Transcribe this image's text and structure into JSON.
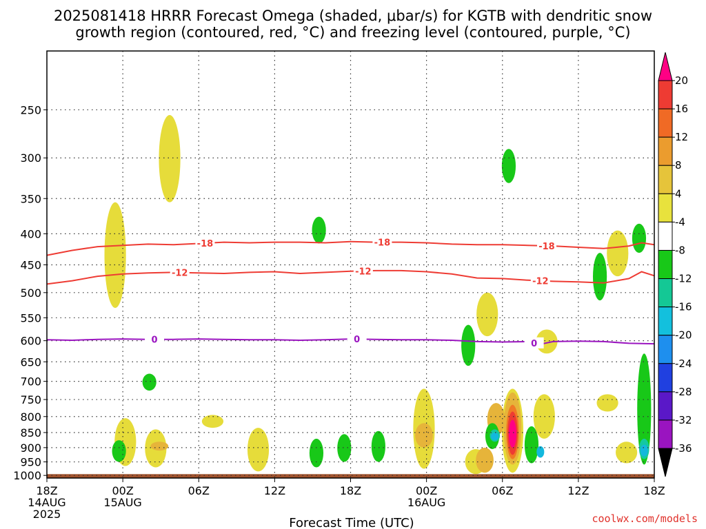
{
  "title": {
    "line1": "2025081418 HRRR Forecast Omega (shaded, μbar/s) for KGTB with dendritic snow",
    "line2": "growth region (contoured, red, °C) and freezing level (contoured, purple, °C)"
  },
  "credit": "coolwx.com/models",
  "chart_data": {
    "type": "time-height",
    "title": "2025081418 HRRR Forecast Omega (shaded, μbar/s) for KGTB with dendritic snow growth region (contoured, red, °C) and freezing level (contoured, purple, °C)",
    "xlabel": "Forecast Time (UTC)",
    "x_range_hours": [
      0,
      48
    ],
    "y_axis": {
      "ticks": [
        250,
        300,
        350,
        400,
        450,
        500,
        550,
        600,
        650,
        700,
        750,
        800,
        850,
        900,
        950,
        1000
      ],
      "range_hpa": [
        200,
        1010
      ],
      "scale": "log",
      "grid": true
    },
    "x_ticks": [
      {
        "hour": 0,
        "lines": [
          "18Z",
          "14AUG",
          "2025"
        ]
      },
      {
        "hour": 6,
        "lines": [
          "00Z",
          "15AUG"
        ]
      },
      {
        "hour": 12,
        "lines": [
          "06Z"
        ]
      },
      {
        "hour": 18,
        "lines": [
          "12Z"
        ]
      },
      {
        "hour": 24,
        "lines": [
          "18Z"
        ]
      },
      {
        "hour": 30,
        "lines": [
          "00Z",
          "16AUG"
        ]
      },
      {
        "hour": 36,
        "lines": [
          "06Z"
        ]
      },
      {
        "hour": 42,
        "lines": [
          "12Z"
        ]
      },
      {
        "hour": 48,
        "lines": [
          "18Z"
        ]
      }
    ],
    "colorbar": {
      "labels": [
        "20",
        "16",
        "12",
        "8",
        "4",
        "-4",
        "-8",
        "-12",
        "-16",
        "-20",
        "-24",
        "-28",
        "-32",
        "-36"
      ],
      "colors": [
        "#ff0084",
        "#ee3b33",
        "#f06a25",
        "#eb9c2e",
        "#e6c43a",
        "#e8e23d",
        "#ffffff",
        "#18c818",
        "#14c895",
        "#13c0dd",
        "#1e8fee",
        "#2040e0",
        "#5a18c8",
        "#9a14c0",
        "#a0a0a0",
        "#000000"
      ]
    },
    "contours": [
      {
        "name": "-18",
        "color": "#ee3b33",
        "points": [
          [
            0,
            434
          ],
          [
            2,
            426
          ],
          [
            4,
            420
          ],
          [
            6,
            418
          ],
          [
            8,
            416
          ],
          [
            10,
            417
          ],
          [
            12,
            415
          ],
          [
            14,
            413
          ],
          [
            16,
            414
          ],
          [
            18,
            413
          ],
          [
            20,
            413
          ],
          [
            22,
            414
          ],
          [
            24,
            412
          ],
          [
            26,
            413
          ],
          [
            28,
            413
          ],
          [
            30,
            414
          ],
          [
            32,
            416
          ],
          [
            34,
            417
          ],
          [
            36,
            417
          ],
          [
            38,
            418
          ],
          [
            40,
            419
          ],
          [
            42,
            421
          ],
          [
            44,
            423
          ],
          [
            46,
            419
          ],
          [
            47,
            414
          ],
          [
            48,
            417
          ]
        ],
        "label_hours": [
          12.5,
          26.5,
          39.5
        ]
      },
      {
        "name": "-12",
        "color": "#ee3b33",
        "points": [
          [
            0,
            484
          ],
          [
            2,
            478
          ],
          [
            4,
            470
          ],
          [
            6,
            466
          ],
          [
            8,
            464
          ],
          [
            10,
            463
          ],
          [
            12,
            464
          ],
          [
            14,
            465
          ],
          [
            16,
            463
          ],
          [
            18,
            462
          ],
          [
            20,
            465
          ],
          [
            22,
            463
          ],
          [
            24,
            461
          ],
          [
            26,
            460
          ],
          [
            28,
            460
          ],
          [
            30,
            462
          ],
          [
            32,
            466
          ],
          [
            34,
            473
          ],
          [
            36,
            474
          ],
          [
            38,
            477
          ],
          [
            40,
            479
          ],
          [
            42,
            480
          ],
          [
            44,
            482
          ],
          [
            46,
            474
          ],
          [
            47,
            462
          ],
          [
            48,
            469
          ]
        ],
        "label_hours": [
          10.5,
          25,
          39
        ]
      },
      {
        "name": "0",
        "color": "#9a14c0",
        "points": [
          [
            0,
            598
          ],
          [
            2,
            599
          ],
          [
            4,
            597
          ],
          [
            6,
            596
          ],
          [
            8,
            597
          ],
          [
            10,
            597
          ],
          [
            12,
            596
          ],
          [
            14,
            597
          ],
          [
            16,
            598
          ],
          [
            18,
            598
          ],
          [
            20,
            599
          ],
          [
            22,
            598
          ],
          [
            24,
            596
          ],
          [
            26,
            597
          ],
          [
            28,
            598
          ],
          [
            30,
            598
          ],
          [
            32,
            599
          ],
          [
            34,
            602
          ],
          [
            36,
            603
          ],
          [
            38,
            602
          ],
          [
            39,
            608
          ],
          [
            40,
            602
          ],
          [
            42,
            601
          ],
          [
            44,
            602
          ],
          [
            46,
            606
          ],
          [
            48,
            607
          ]
        ],
        "label_hours": [
          8.5,
          24.5,
          38.5
        ]
      }
    ],
    "omega_areas": [
      {
        "band": "4to8",
        "hour": 5.4,
        "p_top": 355,
        "p_bot": 530
      },
      {
        "band": "4to8",
        "hour": 9.7,
        "p_top": 255,
        "p_bot": 355
      },
      {
        "band": "4to8",
        "hour": 6.2,
        "p_top": 805,
        "p_bot": 965
      },
      {
        "band": "4to8",
        "hour": 8.6,
        "p_top": 840,
        "p_bot": 970
      },
      {
        "band": "4to8",
        "hour": 13.1,
        "p_top": 795,
        "p_bot": 835
      },
      {
        "band": "4to8",
        "hour": 16.7,
        "p_top": 835,
        "p_bot": 985
      },
      {
        "band": "4to8",
        "hour": 29.8,
        "p_top": 720,
        "p_bot": 975
      },
      {
        "band": "4to8",
        "hour": 34.8,
        "p_top": 500,
        "p_bot": 590
      },
      {
        "band": "4to8",
        "hour": 33.9,
        "p_top": 905,
        "p_bot": 995
      },
      {
        "band": "4to8",
        "hour": 36.8,
        "p_top": 720,
        "p_bot": 990
      },
      {
        "band": "4to8",
        "hour": 39.3,
        "p_top": 735,
        "p_bot": 870
      },
      {
        "band": "4to8",
        "hour": 39.5,
        "p_top": 575,
        "p_bot": 630
      },
      {
        "band": "4to8",
        "hour": 45.1,
        "p_top": 395,
        "p_bot": 470
      },
      {
        "band": "4to8",
        "hour": 44.3,
        "p_top": 735,
        "p_bot": 785
      },
      {
        "band": "4to8",
        "hour": 45.8,
        "p_top": 880,
        "p_bot": 955
      },
      {
        "band": "8to12",
        "hour": 8.9,
        "p_top": 880,
        "p_bot": 910
      },
      {
        "band": "8to12",
        "hour": 29.8,
        "p_top": 820,
        "p_bot": 900
      },
      {
        "band": "8to12",
        "hour": 34.6,
        "p_top": 900,
        "p_bot": 990
      },
      {
        "band": "8to12",
        "hour": 35.5,
        "p_top": 760,
        "p_bot": 860
      },
      {
        "band": "8to12",
        "hour": 36.8,
        "p_top": 730,
        "p_bot": 960
      },
      {
        "band": "12to16",
        "hour": 36.8,
        "p_top": 765,
        "p_bot": 940
      },
      {
        "band": "16to20",
        "hour": 36.8,
        "p_top": 785,
        "p_bot": 925
      },
      {
        "band": "gt20",
        "hour": 36.8,
        "p_top": 810,
        "p_bot": 900
      },
      {
        "band": "m4to-8",
        "hour": 5.7,
        "p_top": 875,
        "p_bot": 950
      },
      {
        "band": "m4to-8",
        "hour": 8.1,
        "p_top": 680,
        "p_bot": 725
      },
      {
        "band": "m4to-8",
        "hour": 21.5,
        "p_top": 375,
        "p_bot": 415
      },
      {
        "band": "m4to-8",
        "hour": 21.3,
        "p_top": 870,
        "p_bot": 970
      },
      {
        "band": "m4to-8",
        "hour": 23.5,
        "p_top": 855,
        "p_bot": 950
      },
      {
        "band": "m4to-8",
        "hour": 26.2,
        "p_top": 845,
        "p_bot": 950
      },
      {
        "band": "m4to-8",
        "hour": 33.3,
        "p_top": 565,
        "p_bot": 660
      },
      {
        "band": "m4to-8",
        "hour": 36.5,
        "p_top": 290,
        "p_bot": 330
      },
      {
        "band": "m4to-8",
        "hour": 35.2,
        "p_top": 820,
        "p_bot": 905
      },
      {
        "band": "m4to-8",
        "hour": 38.3,
        "p_top": 830,
        "p_bot": 955
      },
      {
        "band": "m4to-8",
        "hour": 43.7,
        "p_top": 430,
        "p_bot": 515
      },
      {
        "band": "m4to-8",
        "hour": 47.2,
        "p_top": 630,
        "p_bot": 960
      },
      {
        "band": "m4to-8",
        "hour": 46.8,
        "p_top": 385,
        "p_bot": 430
      },
      {
        "band": "m8to-12",
        "hour": 35.4,
        "p_top": 840,
        "p_bot": 880
      },
      {
        "band": "m8to-12",
        "hour": 47.2,
        "p_top": 870,
        "p_bot": 940
      },
      {
        "band": "m12to-16",
        "hour": 35.4,
        "p_top": 850,
        "p_bot": 875
      },
      {
        "band": "m12to-16",
        "hour": 39.0,
        "p_top": 895,
        "p_bot": 935
      },
      {
        "band": "m12to-16",
        "hour": 47.2,
        "p_top": 890,
        "p_bot": 930
      }
    ],
    "ground_fill": {
      "color": "#a0522d",
      "p_top": 990
    }
  }
}
